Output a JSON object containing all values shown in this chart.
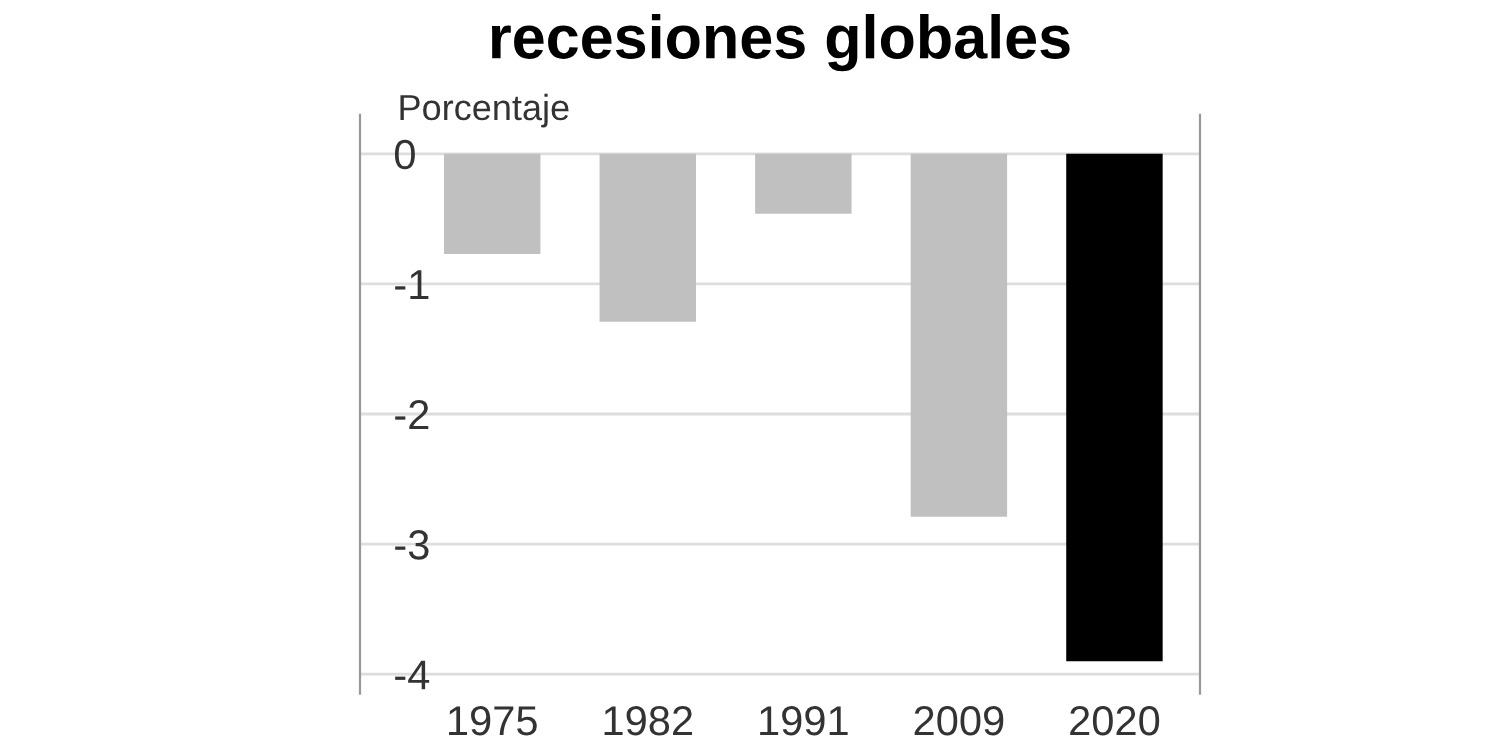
{
  "chart_data": {
    "type": "bar",
    "title": "recesiones globales",
    "ylabel": "Porcentaje",
    "categories": [
      "1975",
      "1982",
      "1991",
      "2009",
      "2020"
    ],
    "values": [
      -0.77,
      -1.29,
      -0.46,
      -2.79,
      -3.9
    ],
    "colors": [
      "#c0c0c0",
      "#c0c0c0",
      "#c0c0c0",
      "#c0c0c0",
      "#000000"
    ],
    "ylim": [
      -4.15,
      0.3
    ],
    "yticks": [
      0,
      -1,
      -2,
      -3,
      -4
    ],
    "grid": "y",
    "legend": false
  }
}
